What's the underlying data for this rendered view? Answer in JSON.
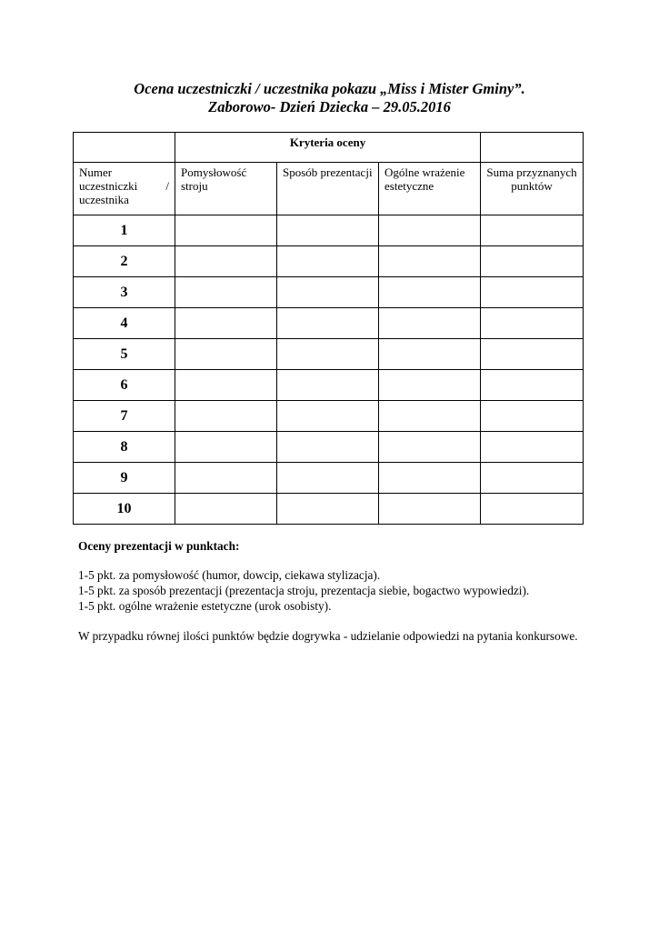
{
  "title_line1": "Ocena uczestniczki / uczestnika pokazu „Miss i  Mister Gminy”.",
  "title_line2": "Zaborowo- Dzień Dziecka – 29.05.2016",
  "table": {
    "criteria_header": "Kryteria oceny",
    "columns": {
      "numer_a": "Numer",
      "numer_b": "uczestniczki",
      "numer_slash": "/",
      "numer_c": "uczestnika",
      "pomyslowosc": "Pomysłowość stroju",
      "sposob": "Sposób prezentacji",
      "ogolne": "Ogólne wrażenie estetyczne",
      "suma": "Suma przyznanych punktów"
    },
    "rows": [
      "1",
      "2",
      "3",
      "4",
      "5",
      "6",
      "7",
      "8",
      "9",
      "10"
    ]
  },
  "notes": {
    "heading": "Oceny prezentacji w punktach:",
    "lines": [
      "1-5 pkt. za pomysłowość (humor, dowcip, ciekawa stylizacja).",
      "1-5 pkt. za sposób prezentacji (prezentacja stroju, prezentacja siebie, bogactwo wypowiedzi).",
      "1-5 pkt. ogólne wrażenie estetyczne (urok osobisty)."
    ],
    "tie_rule": "W przypadku równej ilości punktów będzie dogrywka - udzielanie odpowiedzi na pytania konkursowe."
  }
}
